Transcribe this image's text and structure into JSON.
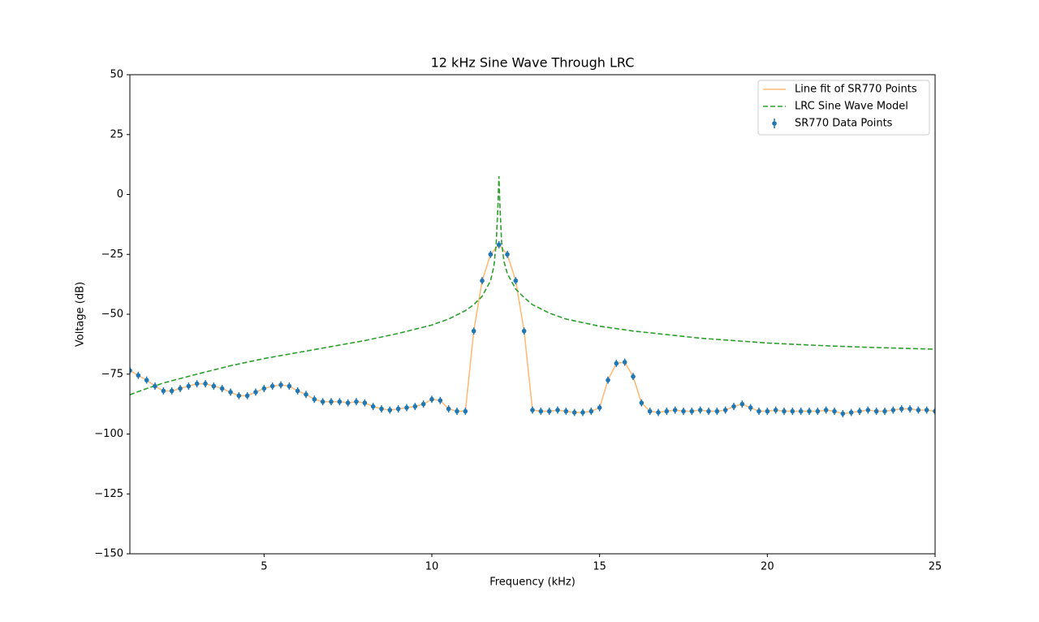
{
  "chart_data": {
    "type": "line",
    "title": "12 kHz Sine Wave Through LRC",
    "x_label": "Frequency (kHz)",
    "y_label": "Voltage (dB)",
    "xlim": [
      1,
      25
    ],
    "ylim": [
      -150,
      50
    ],
    "xticks": [
      5,
      10,
      15,
      20,
      25
    ],
    "yticks": [
      {
        "value": -150,
        "label": "−150"
      },
      {
        "value": -125,
        "label": "−125"
      },
      {
        "value": -100,
        "label": "−100"
      },
      {
        "value": -75,
        "label": "−75"
      },
      {
        "value": -50,
        "label": "−50"
      },
      {
        "value": -25,
        "label": "−25"
      },
      0,
      25,
      50
    ],
    "legend": "upper right",
    "x": [
      1,
      1.25,
      1.5,
      1.75,
      2,
      2.25,
      2.5,
      2.75,
      3,
      3.25,
      3.5,
      3.75,
      4,
      4.25,
      4.5,
      4.75,
      5,
      5.25,
      5.5,
      5.75,
      6,
      6.25,
      6.5,
      6.75,
      7,
      7.25,
      7.5,
      7.75,
      8,
      8.25,
      8.5,
      8.75,
      9,
      9.25,
      9.5,
      9.75,
      10,
      10.25,
      10.5,
      10.75,
      11,
      11.25,
      11.5,
      11.75,
      12,
      12.25,
      12.5,
      12.75,
      13,
      13.25,
      13.5,
      13.75,
      14,
      14.25,
      14.5,
      14.75,
      15,
      15.25,
      15.5,
      15.75,
      16,
      16.25,
      16.5,
      16.75,
      17,
      17.25,
      17.5,
      17.75,
      18,
      18.25,
      18.5,
      18.75,
      19,
      19.25,
      19.5,
      19.75,
      20,
      20.25,
      20.5,
      20.75,
      21,
      21.25,
      21.5,
      21.75,
      22,
      22.25,
      22.5,
      22.75,
      23,
      23.25,
      23.5,
      23.75,
      24,
      24.25,
      24.5,
      24.75,
      25
    ],
    "series": [
      {
        "name": "Line fit of SR770 Points",
        "color": "#ffbb78",
        "style": "solid",
        "values": [
          -73.5,
          -75.5,
          -77.5,
          -80,
          -82,
          -82,
          -81,
          -80,
          -79,
          -79,
          -80,
          -81,
          -82.5,
          -84,
          -84,
          -82.5,
          -81,
          -80,
          -79.5,
          -80,
          -82,
          -83.5,
          -85.5,
          -86.5,
          -86.5,
          -86.5,
          -87,
          -86.5,
          -87,
          -88.5,
          -89.5,
          -90,
          -89.5,
          -89,
          -88.5,
          -87.5,
          -85.5,
          -86,
          -89.5,
          -90.5,
          -90.5,
          -57,
          -36,
          -25,
          -21,
          -25,
          -36,
          -57,
          -90,
          -90.5,
          -90.5,
          -90,
          -90.5,
          -91,
          -91,
          -90.5,
          -89,
          -77.5,
          -70.5,
          -70,
          -76,
          -87,
          -90.5,
          -91,
          -90.5,
          -90,
          -90.5,
          -90.5,
          -90,
          -90.5,
          -90.5,
          -90,
          -88.5,
          -87.5,
          -89,
          -90.5,
          -90.5,
          -90,
          -90.5,
          -90.5,
          -90.5,
          -90.5,
          -90.5,
          -90,
          -90.5,
          -91.5,
          -91,
          -90.5,
          -90,
          -90.5,
          -90.5,
          -90,
          -89.5,
          -89.5,
          -90,
          -90,
          -90.5
        ]
      },
      {
        "name": "LRC Sine Wave Model",
        "color": "#2ca02c",
        "style": "dashed",
        "x": [
          1,
          1.5,
          2,
          3,
          4,
          5,
          6,
          7,
          8,
          9,
          10,
          10.5,
          11,
          11.25,
          11.5,
          11.75,
          11.85,
          11.92,
          11.97,
          12,
          12.03,
          12.08,
          12.15,
          12.25,
          12.5,
          12.75,
          13,
          13.5,
          14,
          15,
          16,
          17,
          18,
          19,
          20,
          21,
          22,
          23,
          24,
          25
        ],
        "values": [
          -83.6,
          -81,
          -78.7,
          -75,
          -71.5,
          -68.5,
          -66,
          -63.5,
          -61,
          -58,
          -54.5,
          -52,
          -48.5,
          -46,
          -42.5,
          -36,
          -30,
          -20,
          -5,
          7.6,
          -5,
          -20,
          -28,
          -33,
          -39.5,
          -43,
          -46,
          -49.5,
          -52,
          -55,
          -57,
          -58.5,
          -60,
          -61,
          -62,
          -62.7,
          -63.3,
          -63.8,
          -64.2,
          -64.6
        ]
      },
      {
        "name": "SR770 Data Points",
        "color": "#1f77b4",
        "style": "errorbar",
        "yerr": 1.5,
        "values": [
          -73.5,
          -75.5,
          -77.5,
          -80,
          -82,
          -82,
          -81,
          -80,
          -79,
          -79,
          -80,
          -81,
          -82.5,
          -84,
          -84,
          -82.5,
          -81,
          -80,
          -79.5,
          -80,
          -82,
          -83.5,
          -85.5,
          -86.5,
          -86.5,
          -86.5,
          -87,
          -86.5,
          -87,
          -88.5,
          -89.5,
          -90,
          -89.5,
          -89,
          -88.5,
          -87.5,
          -85.5,
          -86,
          -89.5,
          -90.5,
          -90.5,
          -57,
          -36,
          -25,
          -21,
          -25,
          -36,
          -57,
          -90,
          -90.5,
          -90.5,
          -90,
          -90.5,
          -91,
          -91,
          -90.5,
          -89,
          -77.5,
          -70.5,
          -70,
          -76,
          -87,
          -90.5,
          -91,
          -90.5,
          -90,
          -90.5,
          -90.5,
          -90,
          -90.5,
          -90.5,
          -90,
          -88.5,
          -87.5,
          -89,
          -90.5,
          -90.5,
          -90,
          -90.5,
          -90.5,
          -90.5,
          -90.5,
          -90.5,
          -90,
          -90.5,
          -91.5,
          -91,
          -90.5,
          -90,
          -90.5,
          -90.5,
          -90,
          -89.5,
          -89.5,
          -90,
          -90,
          -90.5
        ]
      }
    ]
  }
}
